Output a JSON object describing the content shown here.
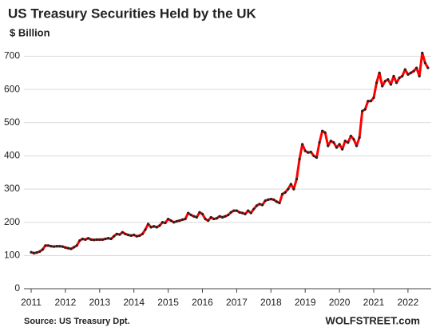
{
  "chart_data": {
    "type": "line",
    "title": "US Treasury Securities Held by the UK",
    "subtitle": "$ Billion",
    "source": "Source: US Treasury  Dpt.",
    "brand": "WOLFSTREET.com",
    "categories": [
      "2011",
      null,
      null,
      null,
      null,
      null,
      null,
      null,
      null,
      null,
      null,
      null,
      "2012",
      null,
      null,
      null,
      null,
      null,
      null,
      null,
      null,
      null,
      null,
      null,
      "2013",
      null,
      null,
      null,
      null,
      null,
      null,
      null,
      null,
      null,
      null,
      null,
      "2014",
      null,
      null,
      null,
      null,
      null,
      null,
      null,
      null,
      null,
      null,
      null,
      "2015",
      null,
      null,
      null,
      null,
      null,
      null,
      null,
      null,
      null,
      null,
      null,
      "2016",
      null,
      null,
      null,
      null,
      null,
      null,
      null,
      null,
      null,
      null,
      null,
      "2017",
      null,
      null,
      null,
      null,
      null,
      null,
      null,
      null,
      null,
      null,
      null,
      "2018",
      null,
      null,
      null,
      null,
      null,
      null,
      null,
      null,
      null,
      null,
      null,
      "2019",
      null,
      null,
      null,
      null,
      null,
      null,
      null,
      null,
      null,
      null,
      null,
      "2020",
      null,
      null,
      null,
      null,
      null,
      null,
      null,
      null,
      null,
      null,
      null,
      "2021",
      null,
      null,
      null,
      null,
      null,
      null,
      null,
      null,
      null,
      null,
      null,
      "2022",
      null,
      null,
      null,
      null,
      null,
      null,
      null
    ],
    "series": [
      {
        "color": "#ff0000",
        "marker_color": "#222222",
        "values": [
          110,
          107,
          109,
          112,
          118,
          130,
          130,
          128,
          127,
          128,
          128,
          127,
          124,
          122,
          120,
          125,
          130,
          145,
          150,
          148,
          152,
          148,
          147,
          148,
          148,
          148,
          150,
          152,
          150,
          158,
          165,
          163,
          170,
          165,
          162,
          160,
          162,
          158,
          160,
          165,
          178,
          195,
          185,
          188,
          185,
          190,
          200,
          198,
          210,
          205,
          200,
          203,
          205,
          208,
          210,
          228,
          222,
          218,
          215,
          230,
          225,
          210,
          205,
          215,
          210,
          212,
          218,
          215,
          218,
          222,
          230,
          235,
          235,
          230,
          228,
          225,
          235,
          228,
          240,
          250,
          255,
          252,
          265,
          268,
          270,
          268,
          262,
          258,
          285,
          290,
          300,
          315,
          300,
          330,
          390,
          435,
          415,
          410,
          412,
          400,
          395,
          440,
          475,
          470,
          430,
          445,
          440,
          425,
          435,
          420,
          445,
          440,
          460,
          450,
          430,
          455,
          535,
          540,
          565,
          565,
          575,
          620,
          650,
          610,
          625,
          630,
          615,
          640,
          620,
          635,
          640,
          660,
          645,
          650,
          655,
          665,
          640,
          710,
          680,
          665
        ]
      }
    ],
    "ylim": [
      0,
      730
    ],
    "yticks": [
      0,
      100,
      200,
      300,
      400,
      500,
      600,
      700
    ],
    "grid": true
  }
}
